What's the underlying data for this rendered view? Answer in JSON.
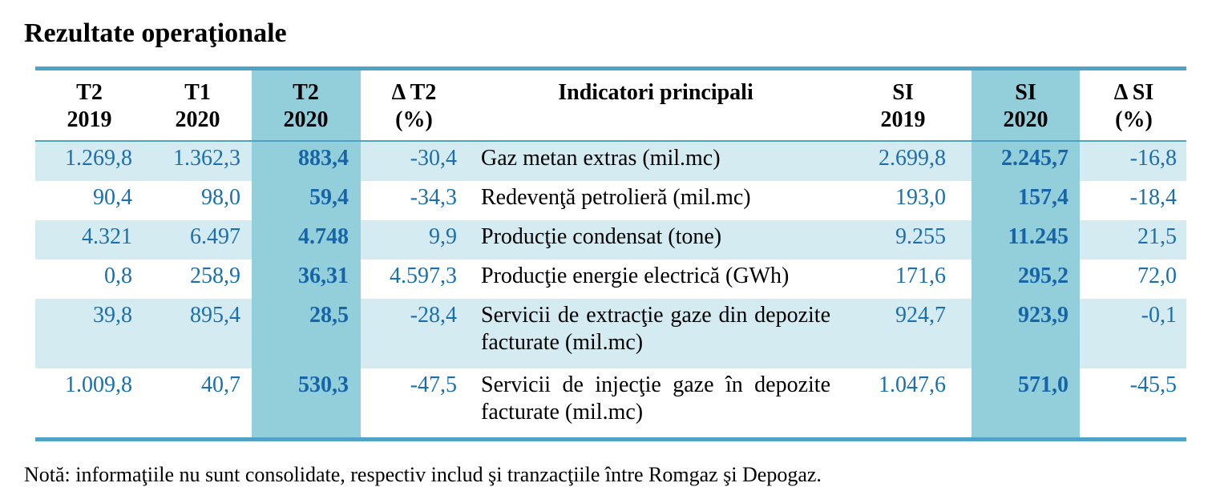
{
  "title": "Rezultate operaţionale",
  "headers": {
    "t2_2019": [
      "T2",
      "2019"
    ],
    "t1_2020": [
      "T1",
      "2020"
    ],
    "t2_2020": [
      "T2",
      "2020"
    ],
    "delta_t2": [
      "Δ T2",
      "(%)"
    ],
    "indicator": "Indicatori principali",
    "si_2019": [
      "SI",
      "2019"
    ],
    "si_2020": [
      "SI",
      "2020"
    ],
    "delta_si": [
      "Δ SI",
      "(%)"
    ]
  },
  "rows": [
    {
      "t2_2019": "1.269,8",
      "t1_2020": "1.362,3",
      "t2_2020": "883,4",
      "delta_t2": "-30,4",
      "indicator": "Gaz metan extras (mil.mc)",
      "si_2019": "2.699,8",
      "si_2020": "2.245,7",
      "delta_si": "-16,8"
    },
    {
      "t2_2019": "90,4",
      "t1_2020": "98,0",
      "t2_2020": "59,4",
      "delta_t2": "-34,3",
      "indicator": "Redevenţă petrolieră (mil.mc)",
      "si_2019": "193,0",
      "si_2020": "157,4",
      "delta_si": "-18,4"
    },
    {
      "t2_2019": "4.321",
      "t1_2020": "6.497",
      "t2_2020": "4.748",
      "delta_t2": "9,9",
      "indicator": "Producţie condensat (tone)",
      "si_2019": "9.255",
      "si_2020": "11.245",
      "delta_si": "21,5"
    },
    {
      "t2_2019": "0,8",
      "t1_2020": "258,9",
      "t2_2020": "36,31",
      "delta_t2": "4.597,3",
      "indicator": "Producţie energie electrică (GWh)",
      "si_2019": "171,6",
      "si_2020": "295,2",
      "delta_si": "72,0"
    },
    {
      "t2_2019": "39,8",
      "t1_2020": "895,4",
      "t2_2020": "28,5",
      "delta_t2": "-28,4",
      "indicator": "Servicii de extracţie gaze din depozite facturate (mil.mc)",
      "si_2019": "924,7",
      "si_2020": "923,9",
      "delta_si": "-0,1"
    },
    {
      "t2_2019": "1.009,8",
      "t1_2020": "40,7",
      "t2_2020": "530,3",
      "delta_t2": "-47,5",
      "indicator": "Servicii de injecţie gaze în depozite facturate (mil.mc)",
      "si_2019": "1.047,6",
      "si_2020": "571,0",
      "delta_si": "-45,5"
    }
  ],
  "note": "Notă: informaţiile nu sunt consolidate, respectiv includ şi tranzacţiile între Romgaz şi Depogaz.",
  "colors": {
    "rule": "#4fa3c6",
    "highlight_column": "#93cedb",
    "row_shade": "#d5ebf2",
    "numbers": "#1a6fb0"
  }
}
